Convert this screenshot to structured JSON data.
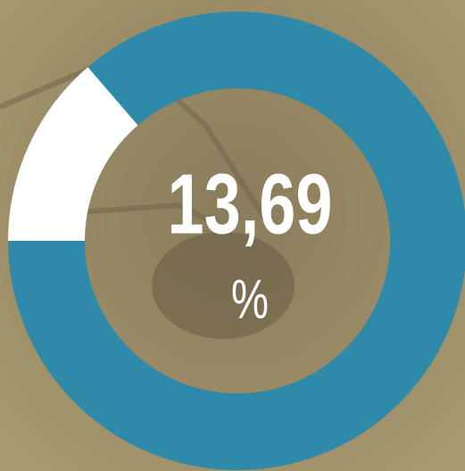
{
  "chart_data": {
    "type": "donut",
    "values": [
      13.69
    ],
    "value_labels": [
      "13,69"
    ],
    "unit": "%",
    "ylim": [
      0,
      100
    ],
    "color": "#ffffff",
    "track_color": "#2e8aa8"
  }
}
